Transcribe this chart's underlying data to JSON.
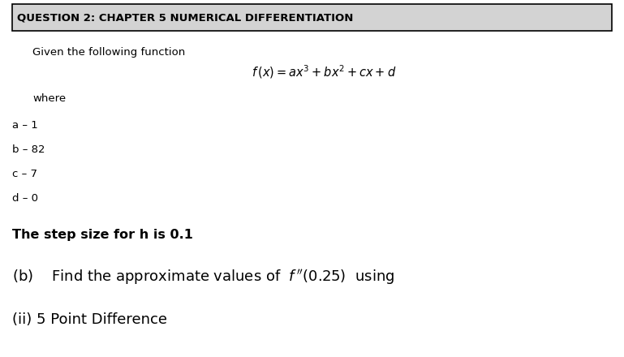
{
  "title": "QUESTION 2: CHAPTER 5 NUMERICAL DIFFERENTIATION",
  "line1": "Given the following function",
  "formula": "$f\\,(x)=ax^{3}+bx^{2}+cx+d$",
  "where_label": "where",
  "param_a": "a – 1",
  "param_b": "b – 82",
  "param_c": "c – 7",
  "param_d": "d – 0",
  "step_size": "The step size for h is 0.1",
  "part_ii": "(ii) 5 Point Difference",
  "bg_color": "#ffffff",
  "header_bg": "#d3d3d3",
  "header_border": "#000000",
  "text_color": "#000000",
  "title_fontsize": 9.5,
  "body_fontsize": 9.5,
  "step_fontsize": 11.5,
  "part_b_fontsize": 13,
  "part_ii_fontsize": 13,
  "fig_width": 7.69,
  "fig_height": 4.4,
  "dpi": 100
}
